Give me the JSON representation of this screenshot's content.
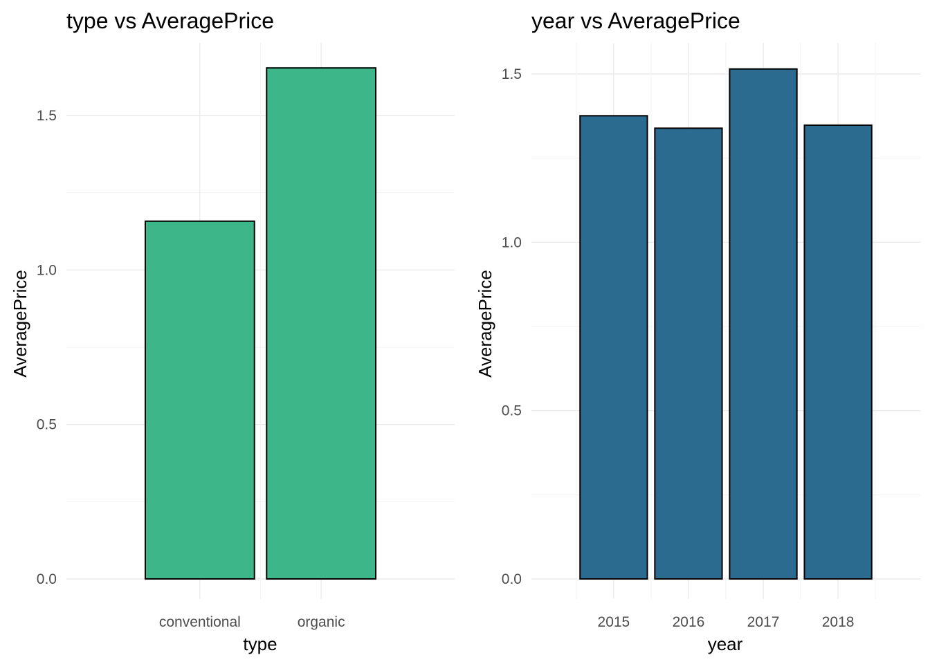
{
  "chart_data": [
    {
      "type": "bar",
      "title": "type vs AveragePrice",
      "xlabel": "type",
      "ylabel": "AveragePrice",
      "categories": [
        "conventional",
        "organic"
      ],
      "values": [
        1.158,
        1.654
      ],
      "ylim": [
        0,
        1.654
      ],
      "yticks": [
        0.0,
        0.5,
        1.0,
        1.5
      ],
      "ytick_labels": [
        "0.0",
        "0.5",
        "1.0",
        "1.5"
      ],
      "bar_color": "#3db689",
      "grid": true,
      "legend": "none"
    },
    {
      "type": "bar",
      "title": "year vs AveragePrice",
      "xlabel": "year",
      "ylabel": "AveragePrice",
      "categories": [
        "2015",
        "2016",
        "2017",
        "2018"
      ],
      "values": [
        1.376,
        1.339,
        1.515,
        1.348
      ],
      "ylim": [
        0,
        1.515
      ],
      "yticks": [
        0.0,
        0.5,
        1.0,
        1.5
      ],
      "ytick_labels": [
        "0.0",
        "0.5",
        "1.0",
        "1.5"
      ],
      "bar_color": "#2a6b8f",
      "grid": true,
      "legend": "none"
    }
  ]
}
